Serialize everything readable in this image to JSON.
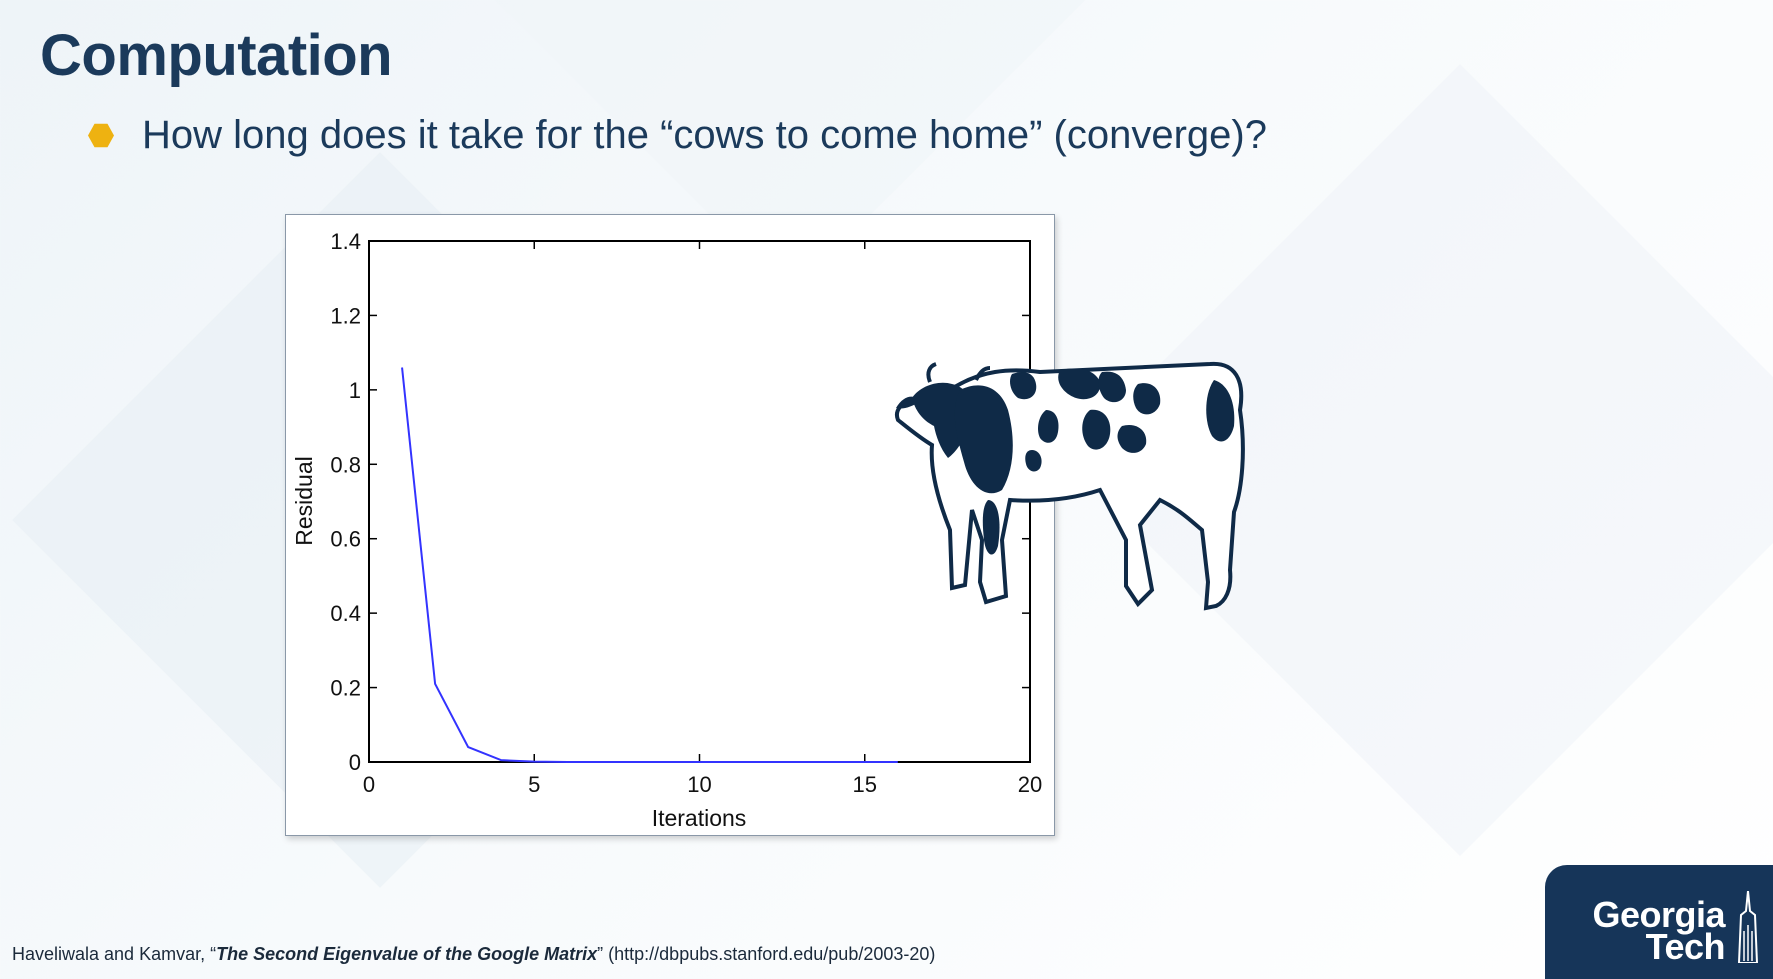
{
  "slide": {
    "title": "Computation",
    "bullet_text": "How long does it take for the “cows to come home” (converge)?"
  },
  "chart_data": {
    "type": "line",
    "title": "",
    "xlabel": "Iterations",
    "ylabel": "Residual",
    "xlim": [
      0,
      20
    ],
    "ylim": [
      0,
      1.4
    ],
    "x_ticks": [
      "0",
      "5",
      "10",
      "15",
      "20"
    ],
    "y_ticks": [
      "0",
      "0.2",
      "0.4",
      "0.6",
      "0.8",
      "1",
      "1.2",
      "1.4"
    ],
    "grid": false,
    "line_color": "#3333ff",
    "series": [
      {
        "x": [
          1,
          2,
          3,
          4,
          5,
          6,
          7,
          8,
          9,
          10,
          11,
          12,
          13,
          14,
          15,
          16
        ],
        "values": [
          1.06,
          0.21,
          0.04,
          0.005,
          0.001,
          0,
          0,
          0,
          0,
          0,
          0,
          0,
          0,
          0,
          0,
          0
        ]
      }
    ]
  },
  "citation": {
    "authors": "Haveliwala and Kamvar, “",
    "title": "The Second Eigenvalue of the Google Matrix",
    "rest": "” (http://dbpubs.stanford.edu/pub/2003-20)"
  },
  "logo": {
    "line1": "Georgia",
    "line2": "Tech"
  },
  "colors": {
    "title": "#1b3a5b",
    "bullet": "#eeb211",
    "logo_bg": "#163559"
  },
  "icons": {
    "cow": "cow-illustration",
    "bullet": "hexagon-bullet-icon"
  }
}
